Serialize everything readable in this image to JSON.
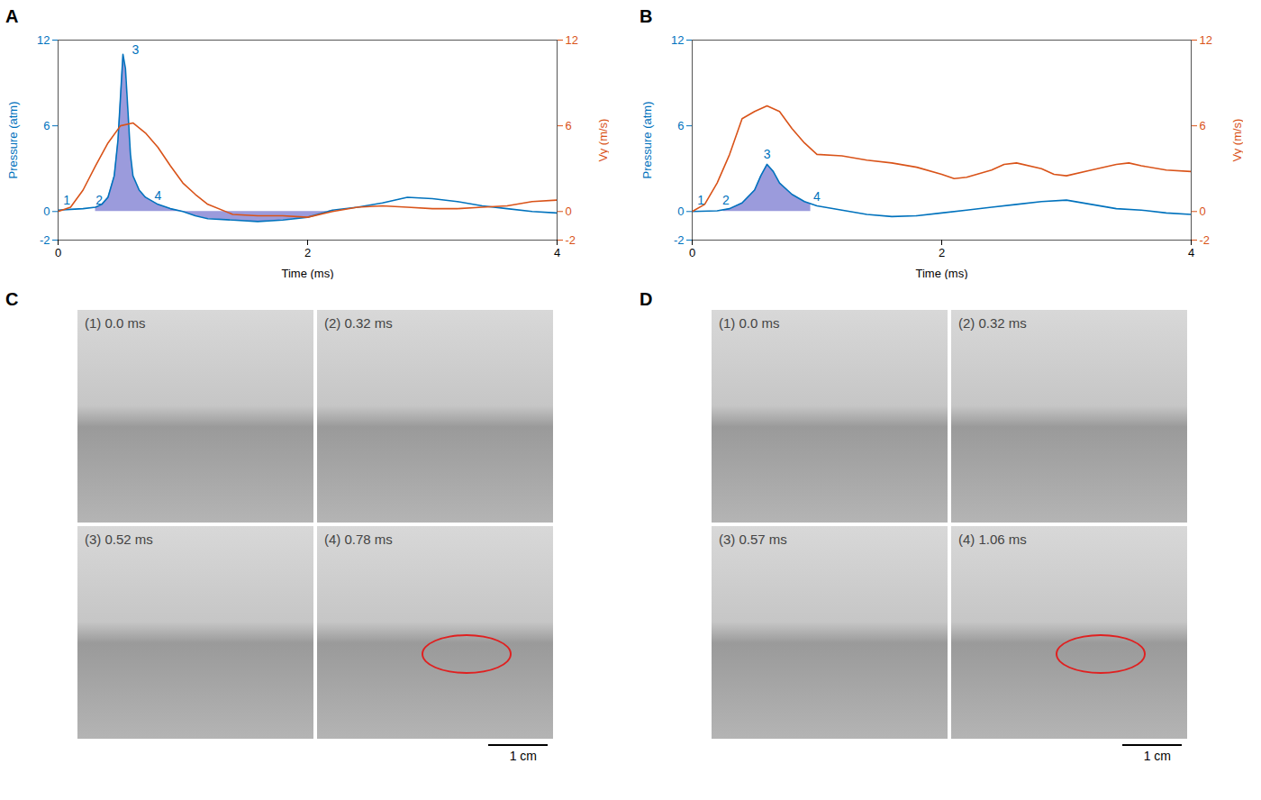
{
  "chart_data": [
    {
      "type": "line",
      "panel": "A",
      "x_label": "Time (ms)",
      "y_label": "Pressure (atm)",
      "y2_label": "Vy (m/s)",
      "xlim": [
        0,
        4
      ],
      "xticks": [
        0,
        2,
        4
      ],
      "ylim": [
        -2,
        12
      ],
      "yticks": [
        -2,
        0,
        6,
        12
      ],
      "y2lim": [
        -2,
        12
      ],
      "y2ticks": [
        -2,
        0,
        6,
        12
      ],
      "grid": false,
      "series": [
        {
          "type": "area",
          "color": "#9b9bdc",
          "x": [
            0.3,
            0.35,
            0.4,
            0.45,
            0.48,
            0.5,
            0.52,
            0.54,
            0.56,
            0.58,
            0.6,
            0.65,
            0.7,
            0.8,
            0.9,
            1.0,
            1.1,
            1.2,
            1.4,
            1.6,
            1.8,
            2.0,
            2.2
          ],
          "values": [
            0.3,
            0.5,
            1.0,
            2.5,
            5,
            8,
            11,
            10,
            7,
            4,
            2.5,
            1.5,
            1.0,
            0.5,
            0.2,
            0,
            -0.3,
            -0.5,
            -0.6,
            -0.7,
            -0.6,
            -0.4,
            0.1
          ]
        },
        {
          "type": "line",
          "color": "#0072bd",
          "x": [
            0,
            0.1,
            0.2,
            0.3,
            0.35,
            0.4,
            0.45,
            0.48,
            0.5,
            0.52,
            0.54,
            0.56,
            0.58,
            0.6,
            0.65,
            0.7,
            0.8,
            0.9,
            1.0,
            1.1,
            1.2,
            1.4,
            1.6,
            1.8,
            2.0,
            2.2,
            2.4,
            2.6,
            2.8,
            3.0,
            3.2,
            3.4,
            3.6,
            3.8,
            4.0
          ],
          "values": [
            0.1,
            0.15,
            0.2,
            0.3,
            0.5,
            1.0,
            2.5,
            5,
            8,
            11,
            10,
            7,
            4,
            2.5,
            1.5,
            1.0,
            0.5,
            0.2,
            0,
            -0.3,
            -0.5,
            -0.6,
            -0.7,
            -0.6,
            -0.4,
            0.1,
            0.3,
            0.6,
            1.0,
            0.9,
            0.7,
            0.4,
            0.2,
            0,
            -0.1
          ]
        },
        {
          "type": "line",
          "color": "#d95319",
          "axis": "y2",
          "x": [
            0,
            0.1,
            0.2,
            0.3,
            0.4,
            0.5,
            0.6,
            0.7,
            0.8,
            0.9,
            1.0,
            1.1,
            1.2,
            1.4,
            1.6,
            1.8,
            2.0,
            2.2,
            2.4,
            2.6,
            2.8,
            3.0,
            3.2,
            3.4,
            3.6,
            3.8,
            4.0
          ],
          "values": [
            0,
            0.3,
            1.5,
            3.2,
            4.8,
            6.0,
            6.2,
            5.5,
            4.5,
            3.2,
            2.0,
            1.2,
            0.5,
            -0.2,
            -0.3,
            -0.3,
            -0.4,
            0,
            0.3,
            0.4,
            0.3,
            0.2,
            0.2,
            0.3,
            0.4,
            0.7,
            0.8
          ]
        }
      ],
      "annotations": [
        {
          "text": "1",
          "x": 0.07,
          "y": 0.8
        },
        {
          "text": "2",
          "x": 0.33,
          "y": 0.8
        },
        {
          "text": "3",
          "x": 0.62,
          "y": 11.3
        },
        {
          "text": "4",
          "x": 0.8,
          "y": 1.1
        }
      ]
    },
    {
      "type": "line",
      "panel": "B",
      "x_label": "Time (ms)",
      "y_label": "Pressure (atm)",
      "y2_label": "Vy (m/s)",
      "xlim": [
        0,
        4
      ],
      "xticks": [
        0,
        2,
        4
      ],
      "ylim": [
        -2,
        12
      ],
      "yticks": [
        -2,
        0,
        6,
        12
      ],
      "y2lim": [
        -2,
        12
      ],
      "y2ticks": [
        -2,
        0,
        6,
        12
      ],
      "grid": false,
      "series": [
        {
          "type": "area",
          "color": "#9b9bdc",
          "x": [
            0.25,
            0.3,
            0.4,
            0.5,
            0.55,
            0.6,
            0.65,
            0.7,
            0.8,
            0.9,
            0.95
          ],
          "values": [
            0.1,
            0.2,
            0.6,
            1.5,
            2.5,
            3.3,
            2.8,
            2.0,
            1.2,
            0.7,
            0.55
          ]
        },
        {
          "type": "line",
          "color": "#0072bd",
          "x": [
            0,
            0.2,
            0.3,
            0.4,
            0.5,
            0.55,
            0.6,
            0.65,
            0.7,
            0.8,
            0.9,
            1.0,
            1.2,
            1.4,
            1.6,
            1.8,
            2.0,
            2.2,
            2.4,
            2.6,
            2.8,
            3.0,
            3.2,
            3.4,
            3.6,
            3.8,
            4.0
          ],
          "values": [
            0,
            0.05,
            0.2,
            0.6,
            1.5,
            2.5,
            3.3,
            2.8,
            2.0,
            1.2,
            0.7,
            0.4,
            0.1,
            -0.2,
            -0.35,
            -0.3,
            -0.1,
            0.1,
            0.3,
            0.5,
            0.7,
            0.8,
            0.5,
            0.2,
            0.1,
            -0.1,
            -0.2
          ]
        },
        {
          "type": "line",
          "color": "#d95319",
          "axis": "y2",
          "x": [
            0,
            0.1,
            0.2,
            0.3,
            0.4,
            0.5,
            0.6,
            0.7,
            0.8,
            0.9,
            1.0,
            1.2,
            1.4,
            1.6,
            1.8,
            2.0,
            2.1,
            2.2,
            2.4,
            2.5,
            2.6,
            2.8,
            2.9,
            3.0,
            3.2,
            3.4,
            3.5,
            3.6,
            3.8,
            4.0
          ],
          "values": [
            0,
            0.5,
            2.0,
            4.0,
            6.5,
            7.0,
            7.4,
            7.0,
            5.8,
            4.8,
            4.0,
            3.9,
            3.6,
            3.4,
            3.1,
            2.6,
            2.3,
            2.4,
            2.9,
            3.3,
            3.4,
            3.0,
            2.6,
            2.5,
            2.9,
            3.3,
            3.4,
            3.2,
            2.9,
            2.8
          ]
        }
      ],
      "annotations": [
        {
          "text": "1",
          "x": 0.07,
          "y": 0.8
        },
        {
          "text": "2",
          "x": 0.27,
          "y": 0.8
        },
        {
          "text": "3",
          "x": 0.6,
          "y": 4.0
        },
        {
          "text": "4",
          "x": 1.0,
          "y": 1.0
        }
      ]
    }
  ],
  "image_panels": [
    {
      "panel": "C",
      "frames": [
        "(1) 0.0 ms",
        "(2) 0.32 ms",
        "(3) 0.52 ms",
        "(4) 0.78 ms"
      ],
      "scale_bar": "1 cm"
    },
    {
      "panel": "D",
      "frames": [
        "(1) 0.0 ms",
        "(2) 0.32 ms",
        "(3) 0.57 ms",
        "(4) 1.06 ms"
      ],
      "scale_bar": "1 cm"
    }
  ]
}
